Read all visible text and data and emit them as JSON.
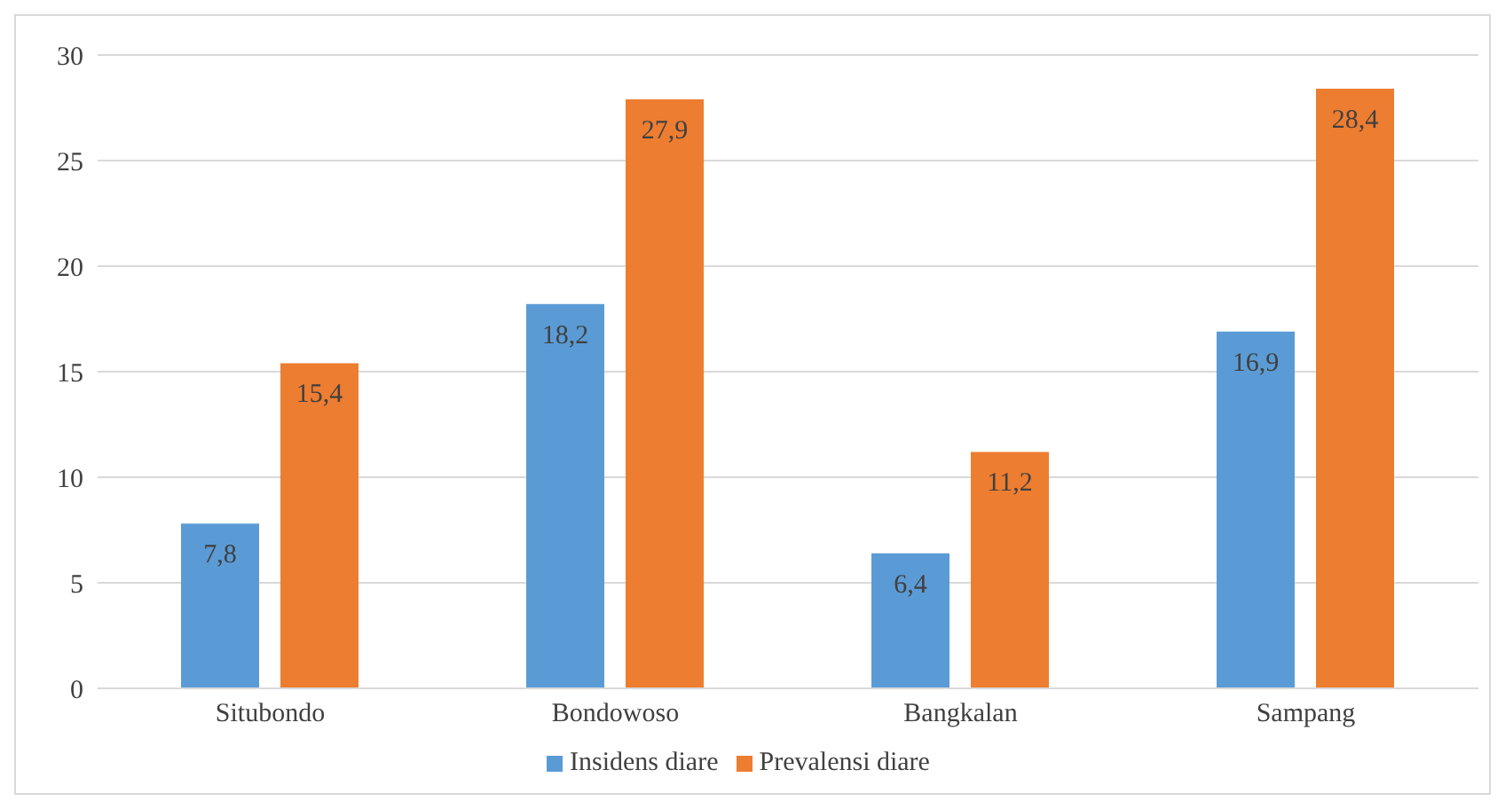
{
  "chart_data": {
    "type": "bar",
    "categories": [
      "Situbondo",
      "Bondowoso",
      "Bangkalan",
      "Sampang"
    ],
    "series": [
      {
        "name": "Insidens diare",
        "color": "#5b9bd5",
        "values": [
          7.8,
          18.2,
          6.4,
          16.9
        ],
        "value_labels": [
          "7,8",
          "18,2",
          "6,4",
          "16,9"
        ]
      },
      {
        "name": "Prevalensi diare",
        "color": "#ed7d31",
        "values": [
          15.4,
          27.9,
          11.2,
          28.4
        ],
        "value_labels": [
          "15,4",
          "27,9",
          "11,2",
          "28,4"
        ]
      }
    ],
    "ylim": [
      0,
      30
    ],
    "yticks": [
      0,
      5,
      10,
      15,
      20,
      25,
      30
    ],
    "grid": "y",
    "legend": "bottom"
  }
}
